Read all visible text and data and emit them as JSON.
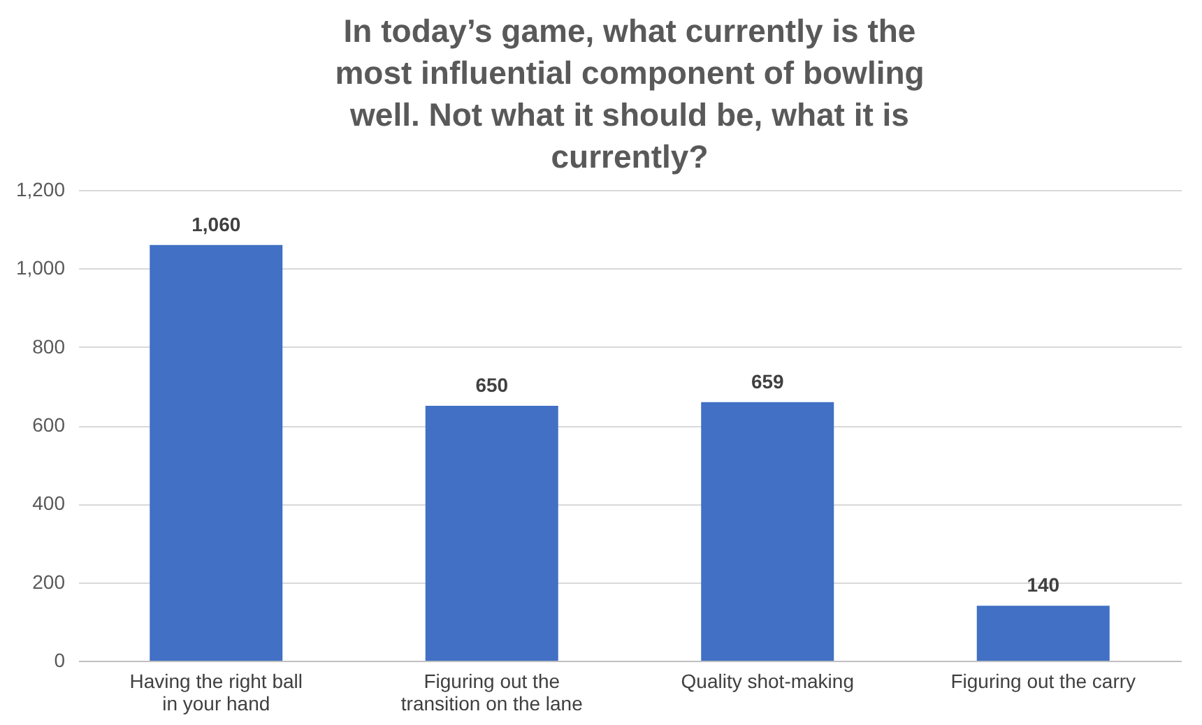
{
  "chart_data": {
    "type": "bar",
    "title": "In today’s game, what currently is the most influential component of bowling well. Not what it should be, what it is currently?",
    "categories": [
      "Having the right ball in your hand",
      "Figuring out the transition on the lane",
      "Quality shot-making",
      "Figuring out the carry"
    ],
    "values": [
      1060,
      650,
      659,
      140
    ],
    "value_labels": [
      "1,060",
      "650",
      "659",
      "140"
    ],
    "color": "#4170c4",
    "ylim": [
      0,
      1200
    ],
    "yticks": [
      0,
      200,
      400,
      600,
      800,
      {
        "value": 1000,
        "label": "1,000"
      },
      {
        "value": 1200,
        "label": "1,200"
      }
    ],
    "grid": "y"
  }
}
